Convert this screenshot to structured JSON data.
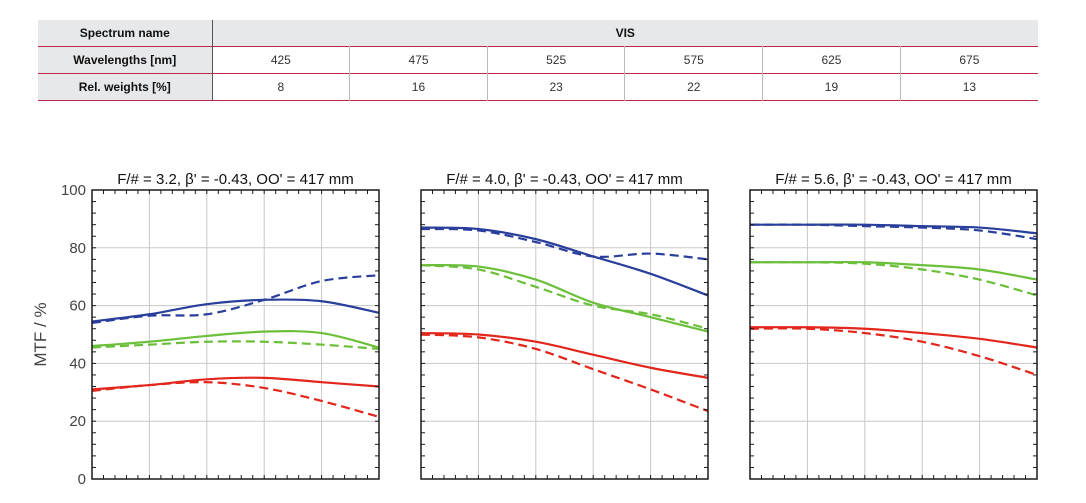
{
  "table": {
    "spectrum_label": "Spectrum name",
    "spectrum_value": "VIS",
    "wavelength_label": "Wavelengths [nm]",
    "wavelengths": [
      "425",
      "475",
      "525",
      "575",
      "625",
      "675"
    ],
    "weight_label": "Rel. weights [%]",
    "weights": [
      "8",
      "16",
      "23",
      "22",
      "19",
      "13"
    ]
  },
  "colors": {
    "blue": "#2a3f9c",
    "green": "#6cbf3a",
    "red": "#e2261c",
    "grid": "#c8c8c8",
    "frame": "#1a1a1a"
  },
  "chart_data": [
    {
      "type": "line",
      "title": "F/# = 3.2, β' = -0.43, OO' = 417 mm",
      "ylabel": "MTF / %",
      "ylim": [
        0,
        100
      ],
      "yticks": [
        "0",
        "20",
        "40",
        "60",
        "80",
        "100"
      ],
      "x_domain": [
        0,
        1
      ],
      "series": [
        {
          "color": "blue",
          "style": "solid",
          "points": [
            [
              0,
              54.5
            ],
            [
              0.2,
              57
            ],
            [
              0.4,
              60.5
            ],
            [
              0.6,
              62
            ],
            [
              0.8,
              61.5
            ],
            [
              1,
              57.5
            ]
          ]
        },
        {
          "color": "blue",
          "style": "dashed",
          "points": [
            [
              0,
              54
            ],
            [
              0.2,
              56.5
            ],
            [
              0.4,
              57
            ],
            [
              0.6,
              62
            ],
            [
              0.8,
              68.5
            ],
            [
              1,
              70.5
            ]
          ]
        },
        {
          "color": "green",
          "style": "solid",
          "points": [
            [
              0,
              46
            ],
            [
              0.2,
              47.5
            ],
            [
              0.4,
              49.5
            ],
            [
              0.6,
              51
            ],
            [
              0.8,
              50.5
            ],
            [
              1,
              45.5
            ]
          ]
        },
        {
          "color": "green",
          "style": "dashed",
          "points": [
            [
              0,
              45.5
            ],
            [
              0.2,
              46.5
            ],
            [
              0.4,
              47.5
            ],
            [
              0.6,
              47.5
            ],
            [
              0.8,
              46.5
            ],
            [
              1,
              45
            ]
          ]
        },
        {
          "color": "red",
          "style": "solid",
          "points": [
            [
              0,
              31
            ],
            [
              0.2,
              32.5
            ],
            [
              0.4,
              34.5
            ],
            [
              0.6,
              35
            ],
            [
              0.8,
              33.5
            ],
            [
              1,
              32
            ]
          ]
        },
        {
          "color": "red",
          "style": "dashed",
          "points": [
            [
              0,
              30.5
            ],
            [
              0.2,
              32.5
            ],
            [
              0.4,
              33.5
            ],
            [
              0.6,
              31.5
            ],
            [
              0.8,
              27
            ],
            [
              1,
              21.5
            ]
          ]
        }
      ]
    },
    {
      "type": "line",
      "title": "F/# = 4.0, β' = -0.43, OO' = 417 mm",
      "ylim": [
        0,
        100
      ],
      "x_domain": [
        0,
        1
      ],
      "series": [
        {
          "color": "blue",
          "style": "solid",
          "points": [
            [
              0,
              87
            ],
            [
              0.2,
              86.5
            ],
            [
              0.4,
              83
            ],
            [
              0.6,
              77
            ],
            [
              0.8,
              71
            ],
            [
              1,
              63.5
            ]
          ]
        },
        {
          "color": "blue",
          "style": "dashed",
          "points": [
            [
              0,
              86.5
            ],
            [
              0.2,
              86
            ],
            [
              0.4,
              82
            ],
            [
              0.6,
              77
            ],
            [
              0.8,
              78
            ],
            [
              1,
              76
            ]
          ]
        },
        {
          "color": "green",
          "style": "solid",
          "points": [
            [
              0,
              74
            ],
            [
              0.2,
              73.5
            ],
            [
              0.4,
              69
            ],
            [
              0.6,
              61
            ],
            [
              0.8,
              56
            ],
            [
              1,
              51
            ]
          ]
        },
        {
          "color": "green",
          "style": "dashed",
          "points": [
            [
              0,
              74
            ],
            [
              0.2,
              72.5
            ],
            [
              0.4,
              66.5
            ],
            [
              0.6,
              60
            ],
            [
              0.8,
              57
            ],
            [
              1,
              52
            ]
          ]
        },
        {
          "color": "red",
          "style": "solid",
          "points": [
            [
              0,
              50.5
            ],
            [
              0.2,
              50
            ],
            [
              0.4,
              47.5
            ],
            [
              0.6,
              43
            ],
            [
              0.8,
              38.5
            ],
            [
              1,
              35
            ]
          ]
        },
        {
          "color": "red",
          "style": "dashed",
          "points": [
            [
              0,
              50
            ],
            [
              0.2,
              49
            ],
            [
              0.4,
              45
            ],
            [
              0.6,
              38
            ],
            [
              0.8,
              31
            ],
            [
              1,
              23.5
            ]
          ]
        }
      ]
    },
    {
      "type": "line",
      "title": "F/# = 5.6, β' = -0.43, OO' = 417 mm",
      "ylim": [
        0,
        100
      ],
      "x_domain": [
        0,
        1
      ],
      "series": [
        {
          "color": "blue",
          "style": "solid",
          "points": [
            [
              0,
              88
            ],
            [
              0.2,
              88
            ],
            [
              0.4,
              88
            ],
            [
              0.6,
              87.5
            ],
            [
              0.8,
              87
            ],
            [
              1,
              85
            ]
          ]
        },
        {
          "color": "blue",
          "style": "dashed",
          "points": [
            [
              0,
              88
            ],
            [
              0.2,
              88
            ],
            [
              0.4,
              87.5
            ],
            [
              0.6,
              87
            ],
            [
              0.8,
              86
            ],
            [
              1,
              83
            ]
          ]
        },
        {
          "color": "green",
          "style": "solid",
          "points": [
            [
              0,
              75
            ],
            [
              0.2,
              75
            ],
            [
              0.4,
              75
            ],
            [
              0.6,
              74
            ],
            [
              0.8,
              72.5
            ],
            [
              1,
              69
            ]
          ]
        },
        {
          "color": "green",
          "style": "dashed",
          "points": [
            [
              0,
              75
            ],
            [
              0.2,
              75
            ],
            [
              0.4,
              74.5
            ],
            [
              0.6,
              72.5
            ],
            [
              0.8,
              69
            ],
            [
              1,
              63.5
            ]
          ]
        },
        {
          "color": "red",
          "style": "solid",
          "points": [
            [
              0,
              52.5
            ],
            [
              0.2,
              52.5
            ],
            [
              0.4,
              52
            ],
            [
              0.6,
              50.5
            ],
            [
              0.8,
              48.5
            ],
            [
              1,
              45.5
            ]
          ]
        },
        {
          "color": "red",
          "style": "dashed",
          "points": [
            [
              0,
              52
            ],
            [
              0.2,
              52
            ],
            [
              0.4,
              50.5
            ],
            [
              0.6,
              47.5
            ],
            [
              0.8,
              42.5
            ],
            [
              1,
              36
            ]
          ]
        }
      ]
    }
  ]
}
